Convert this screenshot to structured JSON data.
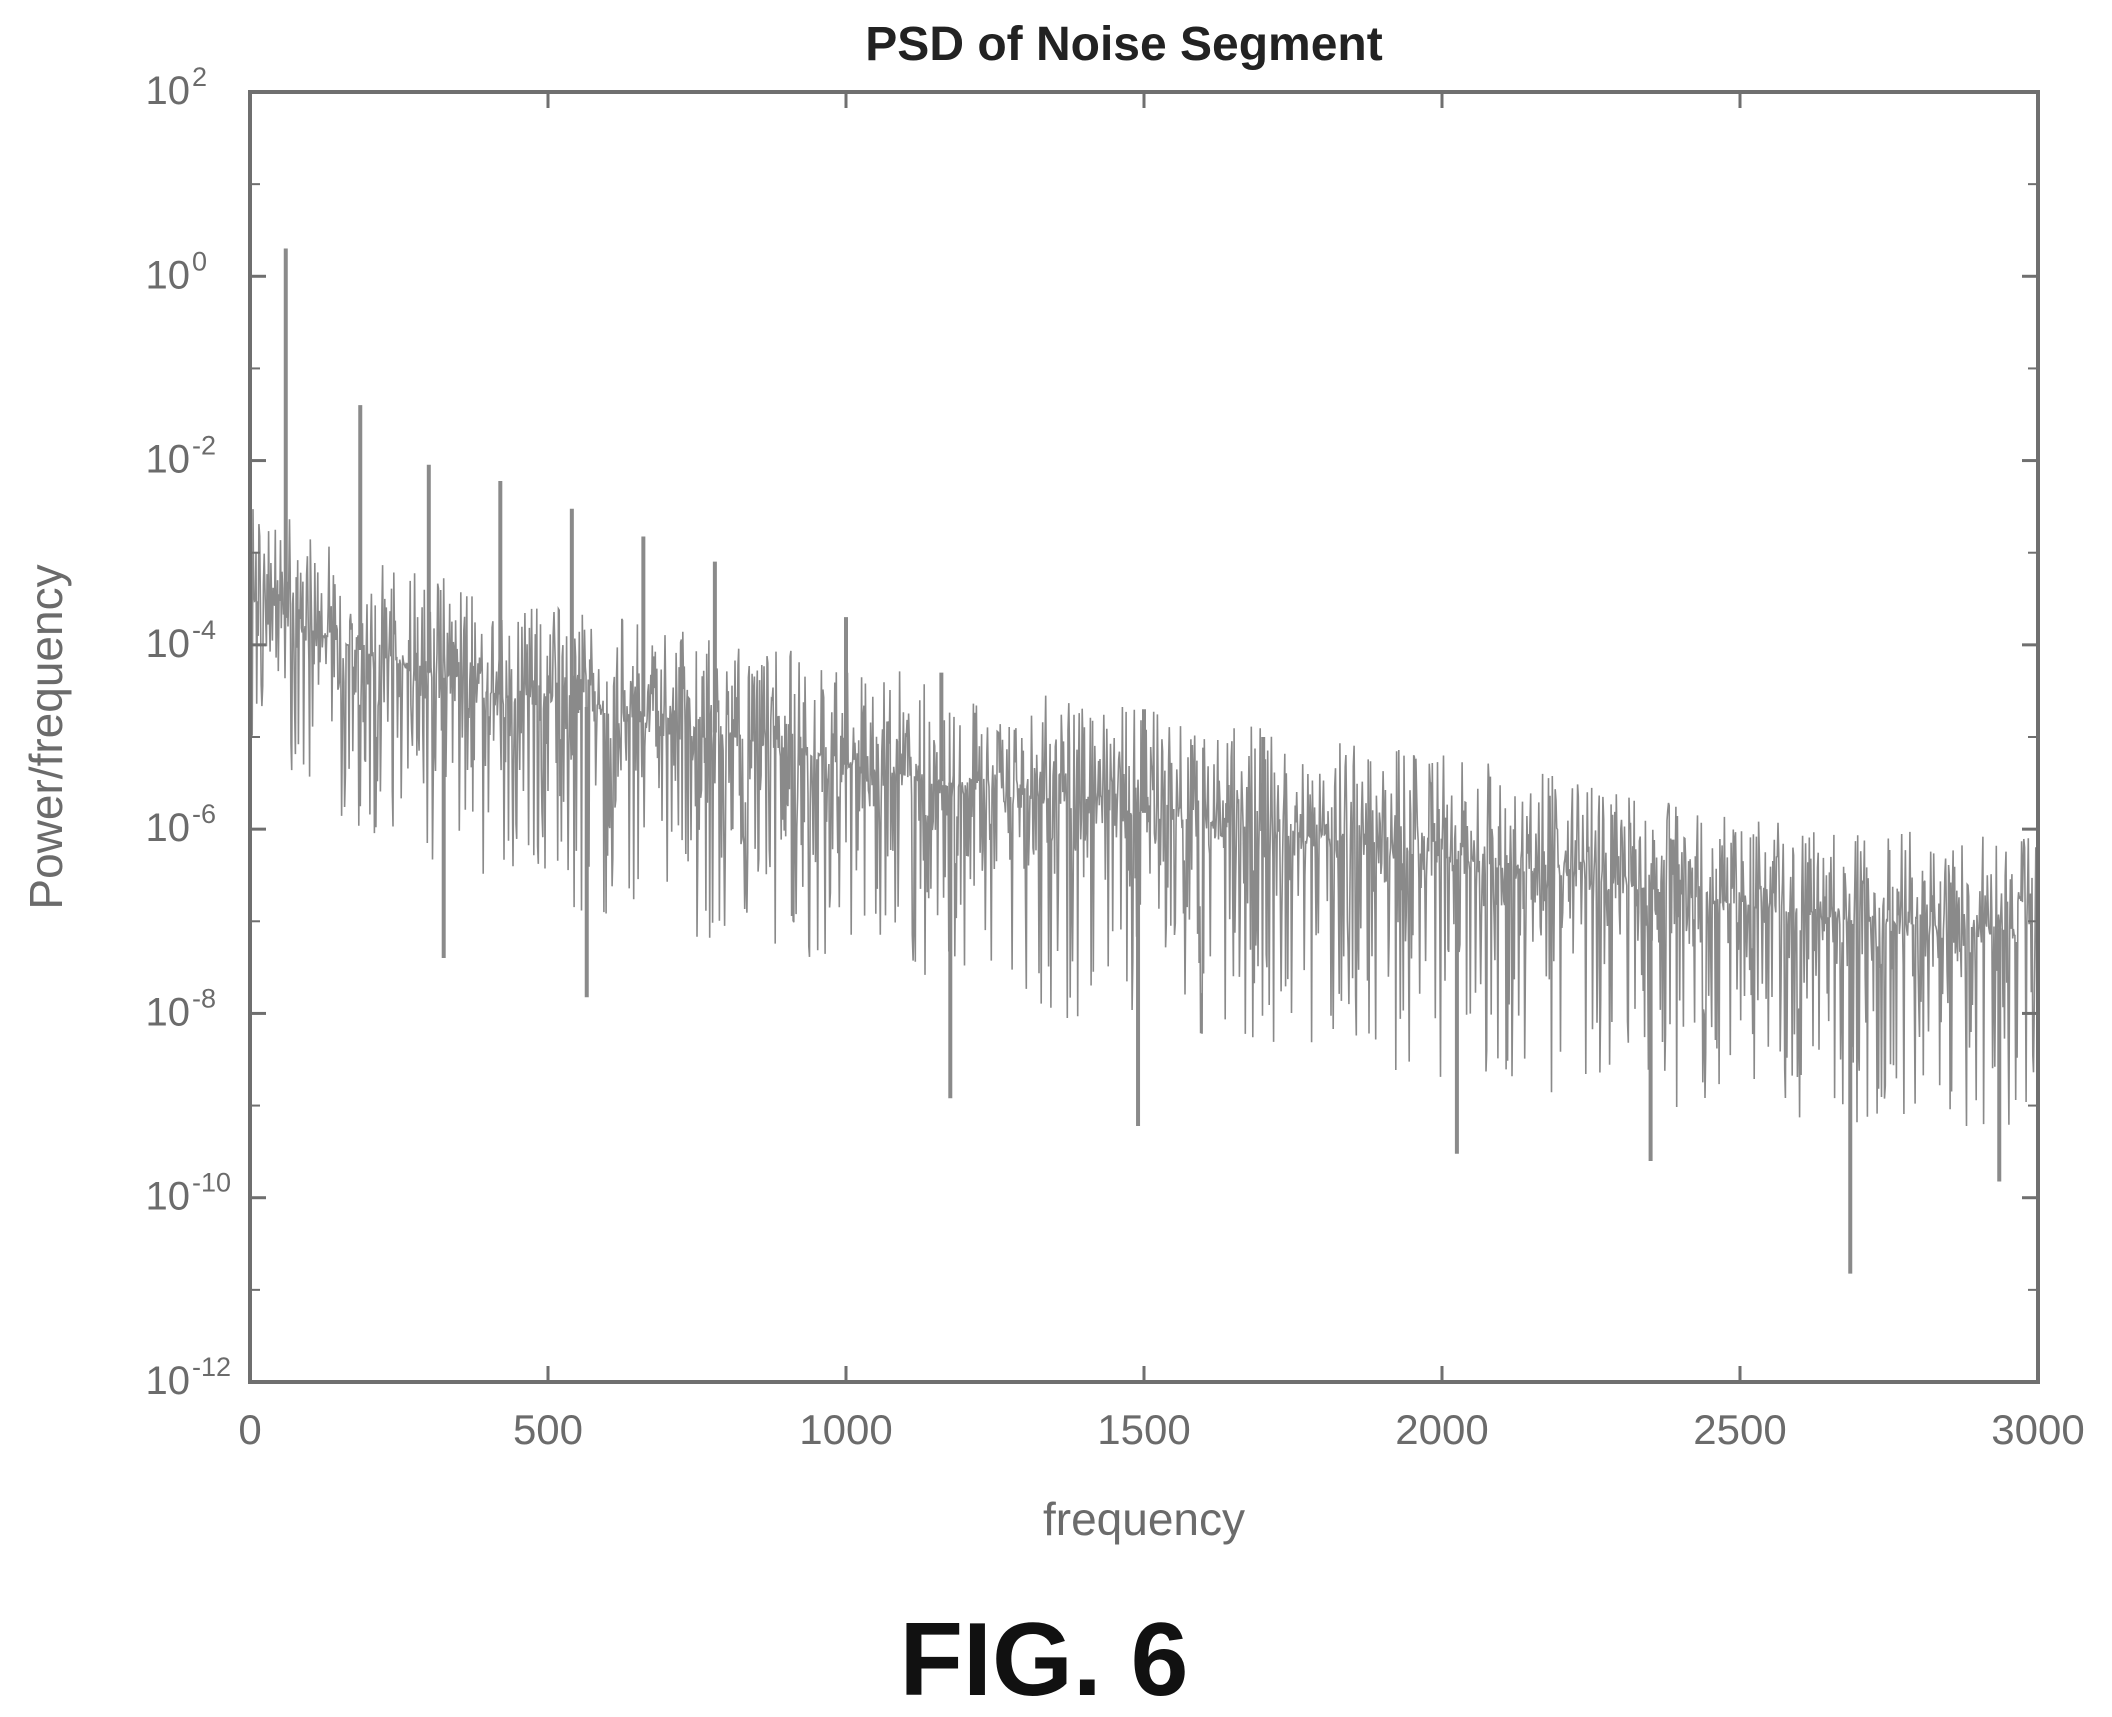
{
  "figure_label": "FIG. 6",
  "chart_data": {
    "type": "line",
    "title": "PSD of Noise Segment",
    "xlabel": "frequency",
    "ylabel": "Power/frequency",
    "xlim": [
      0,
      3000
    ],
    "ylim": [
      1e-12,
      100
    ],
    "yscale": "log",
    "grid": false,
    "x_ticks": [
      0,
      500,
      1000,
      1500,
      2000,
      2500,
      3000
    ],
    "x_tick_labels": [
      "0",
      "500",
      "1000",
      "1500",
      "2000",
      "2500",
      "3000"
    ],
    "y_ticks": [
      1e-12,
      1e-10,
      1e-08,
      1e-06,
      0.0001,
      0.01,
      1,
      100
    ],
    "y_tick_labels": [
      {
        "base": "10",
        "exp": "-12"
      },
      {
        "base": "10",
        "exp": "-10"
      },
      {
        "base": "10",
        "exp": "-8"
      },
      {
        "base": "10",
        "exp": "-6"
      },
      {
        "base": "10",
        "exp": "-4"
      },
      {
        "base": "10",
        "exp": "-2"
      },
      {
        "base": "10",
        "exp": "0"
      },
      {
        "base": "10",
        "exp": "2"
      }
    ],
    "series": [
      {
        "color": "#8a8a8a",
        "envelope": {
          "x": [
            0,
            50,
            100,
            200,
            300,
            400,
            500,
            700,
            1000,
            1200,
            1500,
            1800,
            2000,
            2300,
            2500,
            2700,
            3000
          ],
          "mean": [
            0.0003,
            0.0003,
            0.00015,
            8e-05,
            5e-05,
            3e-05,
            2.5e-05,
            1.5e-05,
            5e-06,
            3e-06,
            1.5e-06,
            8e-07,
            5e-07,
            2.5e-07,
            1.5e-07,
            1e-07,
            8e-08
          ],
          "peak": [
            0.003,
            0.003,
            0.0015,
            0.0008,
            0.0006,
            0.0004,
            0.0003,
            0.00015,
            7e-05,
            4e-05,
            2e-05,
            1e-05,
            7e-06,
            3e-06,
            1.5e-06,
            1e-06,
            8e-07
          ],
          "dip": [
            5e-06,
            5e-06,
            2e-06,
            8e-07,
            4e-07,
            2e-07,
            1.5e-07,
            8e-08,
            3e-08,
            1.5e-08,
            6e-09,
            3e-09,
            2e-09,
            1e-09,
            8e-10,
            6e-10,
            5e-10
          ]
        },
        "spikes": [
          {
            "x": 60,
            "y": 2.0
          },
          {
            "x": 185,
            "y": 0.04
          },
          {
            "x": 300,
            "y": 0.009
          },
          {
            "x": 420,
            "y": 0.006
          },
          {
            "x": 540,
            "y": 0.003
          },
          {
            "x": 660,
            "y": 0.0015
          },
          {
            "x": 780,
            "y": 0.0008
          },
          {
            "x": 1000,
            "y": 0.0002
          },
          {
            "x": 1160,
            "y": 5e-05
          },
          {
            "x": 1500,
            "y": 2e-05
          },
          {
            "x": 1700,
            "y": 1e-05
          }
        ],
        "deep_dips": [
          {
            "x": 325,
            "y": 4e-08
          },
          {
            "x": 565,
            "y": 1.5e-08
          },
          {
            "x": 1175,
            "y": 1.2e-09
          },
          {
            "x": 1490,
            "y": 6e-10
          },
          {
            "x": 2025,
            "y": 3e-10
          },
          {
            "x": 2350,
            "y": 2.5e-10
          },
          {
            "x": 2685,
            "y": 1.5e-11
          },
          {
            "x": 2935,
            "y": 1.5e-10
          }
        ]
      }
    ]
  }
}
